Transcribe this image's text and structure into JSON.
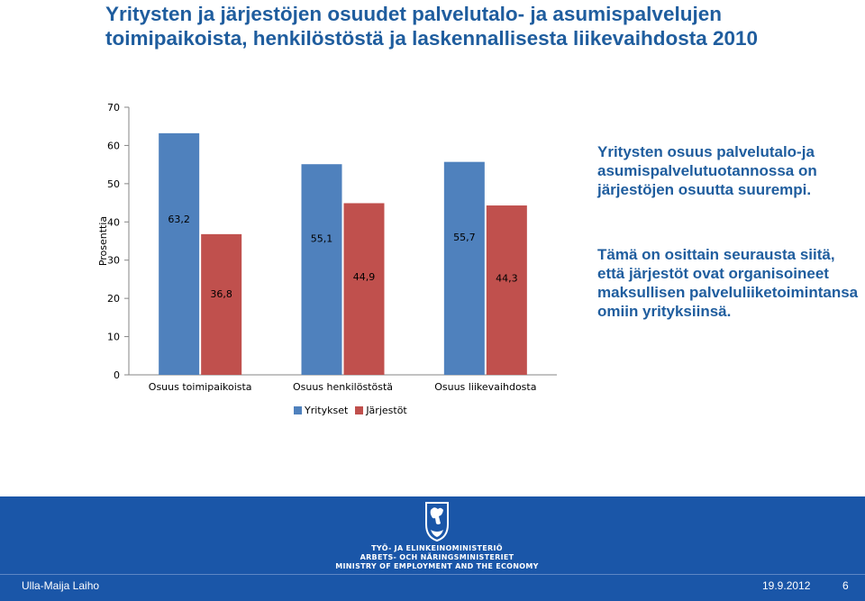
{
  "title": "Yritysten ja järjestöjen osuudet palvelutalo- ja asumispalvelujen toimipaikoista, henkilöstöstä ja laskennallisesta liikevaihdosta 2010",
  "side_text_1": "Yritysten osuus palvelutalo-ja asumispalvelutuotannossa on järjestöjen osuutta suurempi.",
  "side_text_2": "Tämä on osittain seurausta siitä, että järjestöt ovat organisoineet maksullisen palveluliiketoimintansa omiin yrityksiinsä.",
  "chart_data": {
    "type": "bar",
    "ylabel": "Prosenttia",
    "xlabel": "",
    "ylim": [
      0,
      70
    ],
    "yticks": [
      0,
      10,
      20,
      30,
      40,
      50,
      60,
      70
    ],
    "grid": false,
    "legend_position": "bottom",
    "categories": [
      "Osuus toimipaikoista",
      "Osuus henkilöstöstä",
      "Osuus liikevaihdosta"
    ],
    "series": [
      {
        "name": "Yritykset",
        "values": [
          63.2,
          55.1,
          55.7
        ],
        "labels": [
          "63,2",
          "55,1",
          "55,7"
        ],
        "color": "#4f81bd"
      },
      {
        "name": "Järjestöt",
        "values": [
          36.8,
          44.9,
          44.3
        ],
        "labels": [
          "36,8",
          "44,9",
          "44,3"
        ],
        "color": "#c0504d"
      }
    ]
  },
  "footer": {
    "author": "Ulla-Maija Laiho",
    "date": "19.9.2012",
    "page": "6",
    "band_color": "#1a56a8",
    "logo_icon": "finnish-lion-crest-icon",
    "logo_lines": [
      "TYÖ- JA ELINKEINOMINISTERIÖ",
      "ARBETS- OCH NÄRINGSMINISTERIET",
      "MINISTRY OF EMPLOYMENT AND THE ECONOMY"
    ]
  }
}
